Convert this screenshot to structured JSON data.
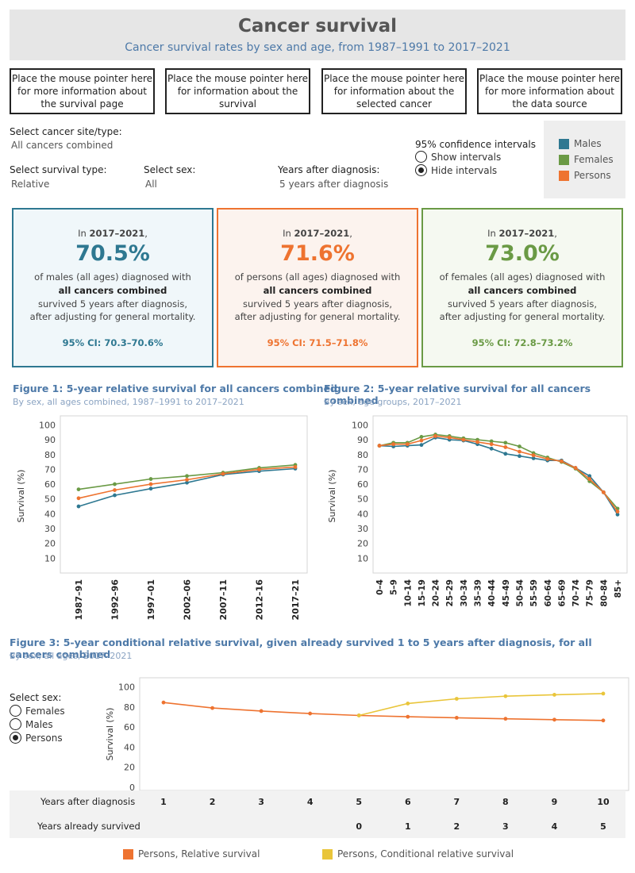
{
  "header": {
    "title": "Cancer survival",
    "subtitle": "Cancer survival rates by sex and age, from 1987–1991 to 2017–2021"
  },
  "info_buttons": [
    "Place the mouse pointer here for more information about the survival page",
    "Place the mouse pointer here for information about the survival",
    "Place the mouse pointer here for information about the selected cancer",
    "Place the mouse pointer here for more information about the data source"
  ],
  "controls": {
    "cancer_site_label": "Select cancer site/type:",
    "cancer_site_value": "All cancers combined",
    "survival_type_label": "Select survival type:",
    "survival_type_value": "Relative",
    "sex_label": "Select sex:",
    "sex_value": "All",
    "years_label": "Years after diagnosis:",
    "years_value": "5 years after diagnosis",
    "ci_label": "95% confidence intervals",
    "ci_options": [
      "Show intervals",
      "Hide intervals"
    ],
    "ci_selected": "Hide intervals"
  },
  "legend": [
    {
      "label": "Males",
      "color": "#2e7891"
    },
    {
      "label": "Females",
      "color": "#6a9a45"
    },
    {
      "label": "Persons",
      "color": "#ee7330"
    }
  ],
  "cards": [
    {
      "in_prefix": "In ",
      "period": "2017–2021",
      "in_suffix": ",",
      "value": "70.5%",
      "line1": "of males (all ages) diagnosed with",
      "cancer": "all cancers combined",
      "line3": "survived 5 years after diagnosis,",
      "line4": "after adjusting for general mortality.",
      "ci": "95% CI: 70.3–70.6%",
      "color": "#2e7891",
      "bg": "#f0f7fa"
    },
    {
      "in_prefix": "In ",
      "period": "2017–2021",
      "in_suffix": ",",
      "value": "71.6%",
      "line1": "of persons (all ages) diagnosed with",
      "cancer": "all cancers combined",
      "line3": "survived 5 years after diagnosis,",
      "line4": "after adjusting for general mortality.",
      "ci": "95% CI: 71.5–71.8%",
      "color": "#ee7330",
      "bg": "#fcf3ee"
    },
    {
      "in_prefix": "In ",
      "period": "2017–2021",
      "in_suffix": ",",
      "value": "73.0%",
      "line1": "of females (all ages) diagnosed with",
      "cancer": "all cancers combined",
      "line3": "survived 5 years after diagnosis,",
      "line4": "after adjusting for general mortality.",
      "ci": "95% CI: 72.8–73.2%",
      "color": "#6a9a45",
      "bg": "#f5f9f1"
    }
  ],
  "figure1": {
    "title": "Figure 1: 5-year relative survival for all cancers combined",
    "subtitle": "By sex, all ages combined, 1987–1991 to 2017–2021"
  },
  "figure2": {
    "title": "Figure 2: 5-year relative survival for all cancers combined",
    "subtitle": "By sex, age groups, 2017–2021"
  },
  "figure3": {
    "title": "Figure 3: 5-year conditional relative survival, given already survived 1 to 5 years after diagnosis, for all cancers combined",
    "subtitle": "By sex, all ages, 2017–2021",
    "select_sex_label": "Select sex:",
    "sex_options": [
      "Females",
      "Males",
      "Persons"
    ],
    "sex_selected": "Persons",
    "row1_label": "Years after diagnosis",
    "row2_label": "Years already survived",
    "legend": [
      {
        "label": "Persons, Relative survival",
        "color": "#ee7330"
      },
      {
        "label": "Persons, Conditional relative survival",
        "color": "#e9c53a"
      }
    ]
  },
  "chart_data": [
    {
      "type": "line",
      "x": [
        "1987–91",
        "1992–96",
        "1997–01",
        "2002–06",
        "2007–11",
        "2012–16",
        "2017–21"
      ],
      "series": [
        {
          "name": "Males",
          "color": "#2e7891",
          "values": [
            45,
            52.5,
            57,
            61,
            66.5,
            68.8,
            70.5
          ]
        },
        {
          "name": "Females",
          "color": "#6a9a45",
          "values": [
            56.5,
            60,
            63.5,
            65.5,
            67.8,
            71,
            73
          ]
        },
        {
          "name": "Persons",
          "color": "#ee7330",
          "values": [
            50.5,
            56,
            60,
            63,
            67,
            70,
            71.6
          ]
        }
      ],
      "ylabel": "Survival (%)",
      "yticks": [
        10,
        20,
        30,
        40,
        50,
        60,
        70,
        80,
        90,
        100
      ],
      "ylim": [
        0,
        104
      ]
    },
    {
      "type": "line",
      "x": [
        "0–4",
        "5–9",
        "10–14",
        "15–19",
        "20–24",
        "25–29",
        "30–34",
        "35–39",
        "40–44",
        "45–49",
        "50–54",
        "55–59",
        "60–64",
        "65–69",
        "70–74",
        "75–79",
        "80–84",
        "85+"
      ],
      "series": [
        {
          "name": "Males",
          "color": "#2e7891",
          "values": [
            86,
            85.5,
            86,
            86.5,
            91.5,
            90,
            89.5,
            87,
            84,
            80.5,
            79,
            77.5,
            76,
            76,
            71,
            65.5,
            54.5,
            39.5
          ]
        },
        {
          "name": "Females",
          "color": "#6a9a45",
          "values": [
            86,
            88,
            88,
            92,
            93.5,
            92.5,
            91,
            90,
            89,
            88,
            85.5,
            81,
            78,
            75,
            70.5,
            62,
            54.5,
            43.5
          ]
        },
        {
          "name": "Persons",
          "color": "#ee7330",
          "values": [
            86,
            87,
            87,
            89.5,
            92.5,
            91.5,
            90,
            88.5,
            87,
            85,
            82,
            79.5,
            77,
            75.5,
            71,
            63.5,
            54.5,
            41.5
          ]
        }
      ],
      "ylabel": "Survival (%)",
      "yticks": [
        10,
        20,
        30,
        40,
        50,
        60,
        70,
        80,
        90,
        100
      ],
      "ylim": [
        0,
        104
      ]
    },
    {
      "type": "line",
      "x": [
        1,
        2,
        3,
        4,
        5,
        6,
        7,
        8,
        9,
        10
      ],
      "x_secondary": [
        "",
        "",
        "",
        "",
        "0",
        "1",
        "2",
        "3",
        "4",
        "5"
      ],
      "series": [
        {
          "name": "Persons, Relative survival",
          "color": "#ee7330",
          "values": [
            84.5,
            79,
            76,
            73.5,
            71.6,
            70.3,
            69.3,
            68.3,
            67.4,
            66.6
          ]
        },
        {
          "name": "Persons, Conditional relative survival",
          "color": "#e9c53a",
          "values": [
            null,
            null,
            null,
            null,
            71.6,
            83.5,
            88.2,
            90.8,
            92.2,
            93.4
          ]
        }
      ],
      "ylabel": "Survival (%)",
      "yticks": [
        0,
        20,
        40,
        60,
        80,
        100
      ],
      "ylim": [
        0,
        106
      ]
    }
  ]
}
